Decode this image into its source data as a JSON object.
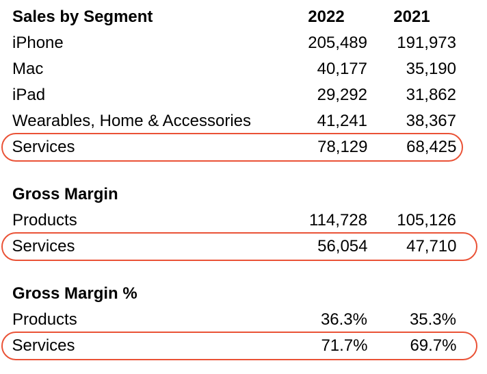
{
  "accent_color": "#ea5236",
  "text_color": "#000000",
  "chart_data": {
    "type": "table",
    "title": "Sales by Segment",
    "columns": [
      "2022",
      "2021"
    ],
    "legend": "none",
    "highlight_style": "hand-drawn red oval around Services rows",
    "sections": [
      {
        "title": "Sales by Segment",
        "rows": [
          {
            "label": "iPhone",
            "y2022": "205,489",
            "y2021": "191,973",
            "highlighted": false
          },
          {
            "label": "Mac",
            "y2022": "40,177",
            "y2021": "35,190",
            "highlighted": false
          },
          {
            "label": "iPad",
            "y2022": "29,292",
            "y2021": "31,862",
            "highlighted": false
          },
          {
            "label": "Wearables, Home & Accessories",
            "y2022": "41,241",
            "y2021": "38,367",
            "highlighted": false
          },
          {
            "label": "Services",
            "y2022": "78,129",
            "y2021": "68,425",
            "highlighted": true
          }
        ]
      },
      {
        "title": "Gross Margin",
        "rows": [
          {
            "label": "Products",
            "y2022": "114,728",
            "y2021": "105,126",
            "highlighted": false
          },
          {
            "label": "Services",
            "y2022": "56,054",
            "y2021": "47,710",
            "highlighted": true
          }
        ]
      },
      {
        "title": "Gross Margin %",
        "rows": [
          {
            "label": "Products",
            "y2022": "36.3%",
            "y2021": "35.3%",
            "highlighted": false
          },
          {
            "label": "Services",
            "y2022": "71.7%",
            "y2021": "69.7%",
            "highlighted": true
          }
        ]
      }
    ]
  }
}
